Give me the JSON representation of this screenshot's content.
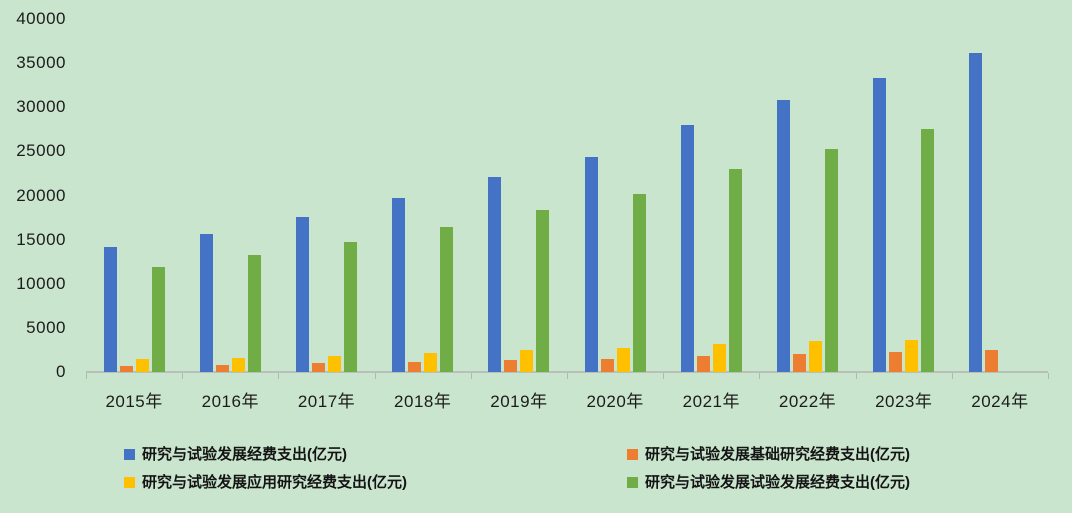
{
  "chart_data": {
    "type": "bar",
    "title": "",
    "xlabel": "",
    "ylabel": "",
    "unit": "亿元",
    "categories": [
      "2015年",
      "2016年",
      "2017年",
      "2018年",
      "2019年",
      "2020年",
      "2021年",
      "2022年",
      "2023年",
      "2024年"
    ],
    "series": [
      {
        "name": "研究与试验发展经费支出(亿元)",
        "color": "#4472C4",
        "values": [
          14170,
          15677,
          17606,
          19678,
          22144,
          24393,
          27956,
          30783,
          33357,
          36130
        ]
      },
      {
        "name": "研究与试验发展基础研究经费支出(亿元)",
        "color": "#ED7D31",
        "values": [
          716,
          823,
          976,
          1090,
          1336,
          1467,
          1817,
          2024,
          2212,
          2497
        ]
      },
      {
        "name": "研究与试验发展应用研究经费支出(亿元)",
        "color": "#FFC000",
        "values": [
          1529,
          1611,
          1849,
          2191,
          2499,
          2757,
          3145,
          3483,
          3662,
          null
        ]
      },
      {
        "name": "研究与试验发展试验发展经费支出(亿元)",
        "color": "#70AD47",
        "values": [
          11925,
          13243,
          14781,
          16397,
          18310,
          20169,
          22994,
          25277,
          27483,
          null
        ]
      }
    ],
    "ylim": [
      0,
      40000
    ],
    "ytick_step": 5000,
    "yticks": [
      0,
      5000,
      10000,
      15000,
      20000,
      25000,
      30000,
      35000,
      40000
    ],
    "grid": false,
    "legend_position": "bottom",
    "background_color": "#CAE5CD",
    "axis_line_color": "#b9c0ba",
    "text_color": "#1c1c1c"
  }
}
